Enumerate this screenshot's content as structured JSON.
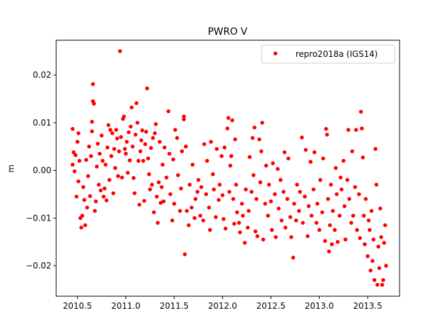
{
  "chart_data": {
    "type": "scatter",
    "title": "PWRO V",
    "xlabel": "",
    "ylabel": "m",
    "xlim": [
      2010.28,
      2013.83
    ],
    "ylim": [
      -0.0264,
      0.0273
    ],
    "xticks": [
      2010.5,
      2011.0,
      2011.5,
      2012.0,
      2012.5,
      2013.0,
      2013.5
    ],
    "xtick_labels": [
      "2010.5",
      "2011.0",
      "2011.5",
      "2012.0",
      "2012.5",
      "2013.0",
      "2013.5"
    ],
    "yticks": [
      0.02,
      0.01,
      0.0,
      -0.01,
      -0.02
    ],
    "ytick_labels": [
      "0.02",
      "0.01",
      "0.00",
      "−0.01",
      "−0.02"
    ],
    "grid": false,
    "legend": {
      "placement": "top-right",
      "entries": [
        "repro2018a (IGS14)"
      ]
    },
    "series": [
      {
        "name": "repro2018a (IGS14)",
        "color": "#ff0000",
        "points": [
          [
            2010.45,
            0.0087
          ],
          [
            2010.45,
            0.0012
          ],
          [
            2010.46,
            0.0038
          ],
          [
            2010.47,
            -0.0002
          ],
          [
            2010.48,
            0.0032
          ],
          [
            2010.49,
            -0.0055
          ],
          [
            2010.5,
            0.006
          ],
          [
            2010.51,
            0.0078
          ],
          [
            2010.51,
            -0.0023
          ],
          [
            2010.52,
            0.002
          ],
          [
            2010.53,
            -0.01
          ],
          [
            2010.54,
            -0.012
          ],
          [
            2010.55,
            -0.0095
          ],
          [
            2010.56,
            -0.0035
          ],
          [
            2010.57,
            -0.0062
          ],
          [
            2010.58,
            -0.0115
          ],
          [
            2010.59,
            0.0022
          ],
          [
            2010.6,
            -0.0078
          ],
          [
            2010.61,
            -0.0012
          ],
          [
            2010.62,
            0.005
          ],
          [
            2010.63,
            -0.0054
          ],
          [
            2010.64,
            0.003
          ],
          [
            2010.65,
            0.0082
          ],
          [
            2010.65,
            0.0102
          ],
          [
            2010.66,
            0.0181
          ],
          [
            2010.66,
            0.0145
          ],
          [
            2010.67,
            0.014
          ],
          [
            2010.68,
            -0.0085
          ],
          [
            2010.69,
            -0.0065
          ],
          [
            2010.7,
            0.0008
          ],
          [
            2010.71,
            0.0056
          ],
          [
            2010.72,
            -0.003
          ],
          [
            2010.73,
            0.0035
          ],
          [
            2010.74,
            -0.0042
          ],
          [
            2010.75,
            0.0073
          ],
          [
            2010.76,
            0.002
          ],
          [
            2010.77,
            -0.0055
          ],
          [
            2010.78,
            -0.0038
          ],
          [
            2010.79,
            0.0012
          ],
          [
            2010.8,
            -0.0063
          ],
          [
            2010.81,
            0.0048
          ],
          [
            2010.82,
            0.0095
          ],
          [
            2010.83,
            -0.002
          ],
          [
            2010.84,
            0.0085
          ],
          [
            2010.85,
            0.003
          ],
          [
            2010.86,
            0.0078
          ],
          [
            2010.87,
            -0.0048
          ],
          [
            2010.88,
            0.0045
          ],
          [
            2010.89,
            0.0005
          ],
          [
            2010.9,
            0.0085
          ],
          [
            2010.91,
            0.0067
          ],
          [
            2010.92,
            -0.0012
          ],
          [
            2010.93,
            0.004
          ],
          [
            2010.94,
            0.025
          ],
          [
            2010.95,
            0.007
          ],
          [
            2010.96,
            -0.0015
          ],
          [
            2010.97,
            0.0108
          ],
          [
            2010.98,
            0.0113
          ],
          [
            2010.99,
            0.0045
          ],
          [
            2011.0,
            0.0035
          ],
          [
            2011.01,
            0.006
          ],
          [
            2011.02,
            -0.0005
          ],
          [
            2011.03,
            0.008
          ],
          [
            2011.04,
            0.0021
          ],
          [
            2011.05,
            0.0092
          ],
          [
            2011.06,
            0.0132
          ],
          [
            2011.07,
            0.005
          ],
          [
            2011.08,
            -0.0016
          ],
          [
            2011.09,
            -0.0048
          ],
          [
            2011.1,
            0.0075
          ],
          [
            2011.11,
            0.0141
          ],
          [
            2011.12,
            0.01
          ],
          [
            2011.13,
            0.002
          ],
          [
            2011.14,
            -0.0072
          ],
          [
            2011.15,
            0.004
          ],
          [
            2011.16,
            0.0063
          ],
          [
            2011.17,
            0.0084
          ],
          [
            2011.18,
            0.002
          ],
          [
            2011.19,
            -0.0064
          ],
          [
            2011.2,
            0.0055
          ],
          [
            2011.21,
            0.0081
          ],
          [
            2011.22,
            0.0172
          ],
          [
            2011.23,
            0.0025
          ],
          [
            2011.24,
            -0.0008
          ],
          [
            2011.25,
            -0.004
          ],
          [
            2011.26,
            0.0047
          ],
          [
            2011.27,
            -0.003
          ],
          [
            2011.28,
            0.0068
          ],
          [
            2011.29,
            -0.0088
          ],
          [
            2011.3,
            0.0078
          ],
          [
            2011.31,
            0.0097
          ],
          [
            2011.32,
            -0.0055
          ],
          [
            2011.33,
            -0.011
          ],
          [
            2011.34,
            -0.0025
          ],
          [
            2011.35,
            0.006
          ],
          [
            2011.36,
            -0.0068
          ],
          [
            2011.37,
            -0.0035
          ],
          [
            2011.38,
            0.0012
          ],
          [
            2011.39,
            -0.0065
          ],
          [
            2011.4,
            0.0048
          ],
          [
            2011.42,
            -0.0015
          ],
          [
            2011.44,
            0.0124
          ],
          [
            2011.45,
            0.0035
          ],
          [
            2011.46,
            -0.005
          ],
          [
            2011.48,
            -0.0105
          ],
          [
            2011.49,
            0.0023
          ],
          [
            2011.5,
            -0.007
          ],
          [
            2011.51,
            0.0085
          ],
          [
            2011.53,
            0.0068
          ],
          [
            2011.54,
            -0.001
          ],
          [
            2011.56,
            -0.0085
          ],
          [
            2011.57,
            -0.0038
          ],
          [
            2011.58,
            0.004
          ],
          [
            2011.6,
            0.0113
          ],
          [
            2011.6,
            0.0107
          ],
          [
            2011.61,
            -0.0176
          ],
          [
            2011.62,
            0.005
          ],
          [
            2011.63,
            -0.0085
          ],
          [
            2011.65,
            -0.0115
          ],
          [
            2011.66,
            -0.003
          ],
          [
            2011.68,
            -0.0078
          ],
          [
            2011.69,
            0.0012
          ],
          [
            2011.71,
            -0.01
          ],
          [
            2011.72,
            -0.006
          ],
          [
            2011.74,
            -0.0045
          ],
          [
            2011.75,
            -0.002
          ],
          [
            2011.77,
            -0.0095
          ],
          [
            2011.78,
            -0.0035
          ],
          [
            2011.8,
            -0.0105
          ],
          [
            2011.81,
            0.0055
          ],
          [
            2011.83,
            -0.005
          ],
          [
            2011.84,
            0.002
          ],
          [
            2011.86,
            -0.0078
          ],
          [
            2011.87,
            -0.0125
          ],
          [
            2011.88,
            0.006
          ],
          [
            2011.9,
            -0.0008
          ],
          [
            2011.91,
            -0.004
          ],
          [
            2011.93,
            -0.0098
          ],
          [
            2011.94,
            0.0045
          ],
          [
            2011.96,
            -0.0062
          ],
          [
            2011.97,
            -0.003
          ],
          [
            2011.99,
            0.003
          ],
          [
            2012.0,
            -0.0052
          ],
          [
            2012.01,
            -0.0102
          ],
          [
            2012.02,
            0.0048
          ],
          [
            2012.03,
            -0.0122
          ],
          [
            2012.05,
            0.0088
          ],
          [
            2012.06,
            0.011
          ],
          [
            2012.07,
            -0.0045
          ],
          [
            2012.08,
            0.001
          ],
          [
            2012.09,
            0.003
          ],
          [
            2012.1,
            0.0105
          ],
          [
            2012.11,
            -0.006
          ],
          [
            2012.12,
            -0.0112
          ],
          [
            2012.13,
            0.0065
          ],
          [
            2012.14,
            -0.003
          ],
          [
            2012.15,
            -0.0088
          ],
          [
            2012.17,
            -0.011
          ],
          [
            2012.18,
            -0.013
          ],
          [
            2012.2,
            -0.007
          ],
          [
            2012.21,
            -0.0095
          ],
          [
            2012.23,
            -0.0152
          ],
          [
            2012.24,
            -0.004
          ],
          [
            2012.26,
            -0.012
          ],
          [
            2012.27,
            -0.0085
          ],
          [
            2012.28,
            0.0028
          ],
          [
            2012.3,
            -0.0045
          ],
          [
            2012.31,
            0.0068
          ],
          [
            2012.32,
            -0.001
          ],
          [
            2012.33,
            0.009
          ],
          [
            2012.34,
            -0.0128
          ],
          [
            2012.35,
            -0.006
          ],
          [
            2012.36,
            -0.0138
          ],
          [
            2012.38,
            0.0065
          ],
          [
            2012.39,
            -0.0025
          ],
          [
            2012.4,
            0.004
          ],
          [
            2012.41,
            0.01
          ],
          [
            2012.42,
            -0.0145
          ],
          [
            2012.44,
            -0.007
          ],
          [
            2012.45,
            0.001
          ],
          [
            2012.47,
            -0.0095
          ],
          [
            2012.48,
            -0.003
          ],
          [
            2012.5,
            -0.0065
          ],
          [
            2012.51,
            -0.0125
          ],
          [
            2012.52,
            0.0015
          ],
          [
            2012.54,
            -0.005
          ],
          [
            2012.55,
            -0.014
          ],
          [
            2012.57,
            0.0003
          ],
          [
            2012.58,
            -0.008
          ],
          [
            2012.6,
            -0.002
          ],
          [
            2012.61,
            -0.0105
          ],
          [
            2012.63,
            -0.0045
          ],
          [
            2012.64,
            0.0038
          ],
          [
            2012.65,
            -0.012
          ],
          [
            2012.67,
            -0.006
          ],
          [
            2012.68,
            0.0025
          ],
          [
            2012.7,
            -0.0098
          ],
          [
            2012.71,
            -0.014
          ],
          [
            2012.73,
            -0.0183
          ],
          [
            2012.74,
            -0.007
          ],
          [
            2012.76,
            -0.0105
          ],
          [
            2012.77,
            -0.003
          ],
          [
            2012.79,
            -0.0085
          ],
          [
            2012.8,
            -0.0045
          ],
          [
            2012.82,
            0.0069
          ],
          [
            2012.83,
            -0.011
          ],
          [
            2012.85,
            -0.0055
          ],
          [
            2012.86,
            0.0043
          ],
          [
            2012.88,
            -0.0138
          ],
          [
            2012.89,
            -0.0075
          ],
          [
            2012.91,
            0.0018
          ],
          [
            2012.92,
            -0.0095
          ],
          [
            2012.94,
            -0.004
          ],
          [
            2012.95,
            0.0038
          ],
          [
            2012.97,
            -0.011
          ],
          [
            2012.98,
            -0.007
          ],
          [
            2013.0,
            -0.0125
          ],
          [
            2013.01,
            -0.002
          ],
          [
            2013.03,
            -0.0088
          ],
          [
            2013.04,
            0.0025
          ],
          [
            2013.06,
            -0.0148
          ],
          [
            2013.07,
            0.0087
          ],
          [
            2013.08,
            0.0075
          ],
          [
            2013.09,
            -0.006
          ],
          [
            2013.1,
            -0.017
          ],
          [
            2013.11,
            -0.0115
          ],
          [
            2013.12,
            -0.003
          ],
          [
            2013.13,
            -0.0155
          ],
          [
            2013.14,
            -0.0085
          ],
          [
            2013.16,
            -0.0125
          ],
          [
            2013.17,
            0.0005
          ],
          [
            2013.18,
            -0.005
          ],
          [
            2013.19,
            -0.015
          ],
          [
            2013.21,
            -0.0095
          ],
          [
            2013.22,
            -0.0015
          ],
          [
            2013.23,
            -0.004
          ],
          [
            2013.25,
            0.002
          ],
          [
            2013.26,
            -0.0075
          ],
          [
            2013.27,
            -0.0145
          ],
          [
            2013.29,
            -0.002
          ],
          [
            2013.3,
            0.0085
          ],
          [
            2013.31,
            -0.006
          ],
          [
            2013.33,
            -0.011
          ],
          [
            2013.34,
            0.004
          ],
          [
            2013.35,
            -0.0095
          ],
          [
            2013.37,
            -0.0035
          ],
          [
            2013.38,
            0.0085
          ],
          [
            2013.39,
            -0.0125
          ],
          [
            2013.41,
            -0.005
          ],
          [
            2013.42,
            -0.0142
          ],
          [
            2013.43,
            0.0123
          ],
          [
            2013.44,
            0.0088
          ],
          [
            2013.45,
            0.0027
          ],
          [
            2013.46,
            -0.0095
          ],
          [
            2013.47,
            -0.0155
          ],
          [
            2013.48,
            -0.006
          ],
          [
            2013.5,
            -0.018
          ],
          [
            2013.51,
            -0.0105
          ],
          [
            2013.52,
            -0.0125
          ],
          [
            2013.53,
            -0.021
          ],
          [
            2013.54,
            -0.0085
          ],
          [
            2013.55,
            -0.019
          ],
          [
            2013.56,
            -0.0145
          ],
          [
            2013.57,
            -0.023
          ],
          [
            2013.58,
            0.0045
          ],
          [
            2013.59,
            -0.003
          ],
          [
            2013.6,
            -0.024
          ],
          [
            2013.61,
            -0.016
          ],
          [
            2013.62,
            -0.0205
          ],
          [
            2013.63,
            -0.008
          ],
          [
            2013.64,
            -0.014
          ],
          [
            2013.65,
            -0.024
          ],
          [
            2013.66,
            -0.023
          ],
          [
            2013.67,
            -0.0152
          ],
          [
            2013.68,
            -0.0115
          ],
          [
            2013.69,
            -0.02
          ]
        ]
      }
    ]
  }
}
